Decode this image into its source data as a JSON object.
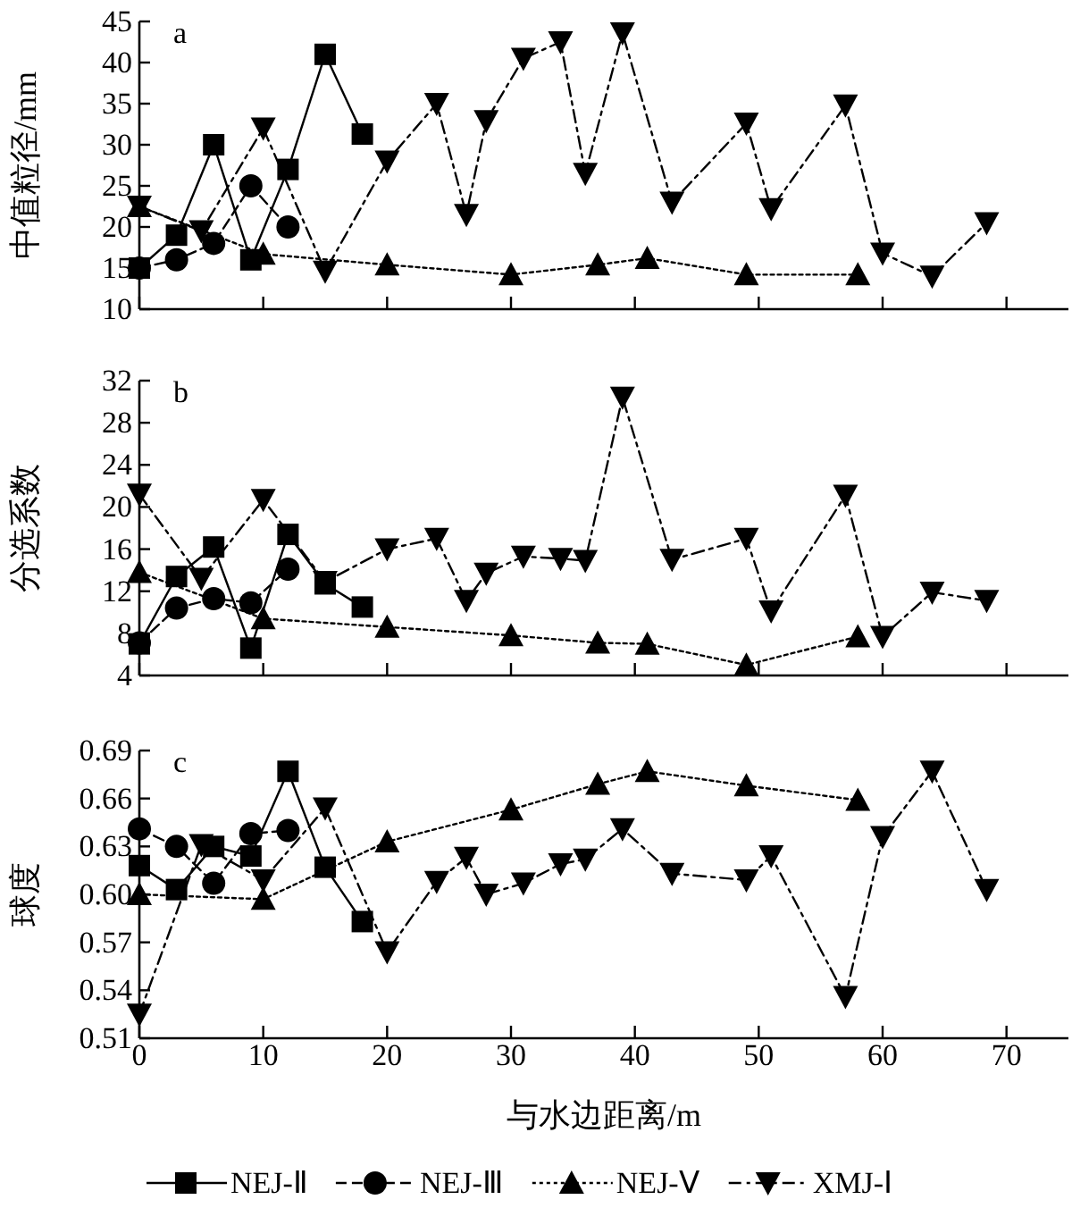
{
  "chart_data": [
    {
      "type": "line",
      "ylabel": "中值粒径/mm",
      "annotations": [
        "a"
      ],
      "xlim": [
        0,
        75
      ],
      "xticks": [
        0,
        10,
        20,
        30,
        40,
        50,
        60,
        70
      ],
      "ylim": [
        10,
        45
      ],
      "yticks": [
        10,
        15,
        20,
        25,
        30,
        35,
        40,
        45
      ],
      "tick_labels": "y",
      "series": [
        {
          "color": "#000000",
          "marker": "square",
          "line_style": "solid",
          "x": [
            0,
            3,
            6,
            9,
            12,
            15,
            18
          ],
          "values": [
            15,
            19,
            30,
            16,
            27,
            41,
            31.3
          ]
        },
        {
          "color": "#000000",
          "marker": "circle",
          "line_style": "dashed",
          "x": [
            0,
            3,
            6,
            9,
            12
          ],
          "values": [
            15,
            16,
            18,
            25,
            20
          ]
        },
        {
          "color": "#000000",
          "marker": "triangle",
          "line_style": "dotted",
          "x": [
            0,
            10,
            20,
            30,
            37,
            41,
            49,
            58
          ],
          "values": [
            22.5,
            16.7,
            15.4,
            14.2,
            15.4,
            16.2,
            14.2,
            14.2
          ]
        },
        {
          "color": "#000000",
          "marker": "triangle_down",
          "line_style": "dashdot",
          "x": [
            0,
            5,
            10,
            15,
            20,
            24,
            26.4,
            28,
            31,
            34,
            36,
            39,
            43,
            49,
            51,
            57,
            60,
            64,
            68.4
          ],
          "values": [
            22.5,
            19.5,
            32,
            14.6,
            28,
            35,
            21.5,
            32.9,
            40.5,
            42.5,
            26.5,
            43.6,
            23,
            32.6,
            22.2,
            34.8,
            16.8,
            14,
            20.5
          ]
        }
      ]
    },
    {
      "type": "line",
      "ylabel": "分选系数",
      "annotations": [
        "b"
      ],
      "xlim": [
        0,
        75
      ],
      "xticks": [
        0,
        10,
        20,
        30,
        40,
        50,
        60,
        70
      ],
      "ylim": [
        4,
        32
      ],
      "yticks": [
        4,
        8,
        12,
        16,
        20,
        24,
        28,
        32
      ],
      "tick_labels": "y",
      "series": [
        {
          "color": "#000000",
          "marker": "square",
          "line_style": "solid",
          "x": [
            0,
            3,
            6,
            9,
            12,
            15,
            18
          ],
          "values": [
            7,
            13.4,
            16.2,
            6.6,
            17.4,
            12.7,
            10.5
          ]
        },
        {
          "color": "#000000",
          "marker": "circle",
          "line_style": "dashed",
          "x": [
            0,
            3,
            6,
            9,
            12
          ],
          "values": [
            7.1,
            10.4,
            11.3,
            10.9,
            14.1
          ]
        },
        {
          "color": "#000000",
          "marker": "triangle",
          "line_style": "dotted",
          "x": [
            0,
            10,
            20,
            30,
            37,
            41,
            49,
            58
          ],
          "values": [
            13.8,
            9.4,
            8.6,
            7.8,
            7.1,
            7,
            5,
            7.7
          ]
        },
        {
          "color": "#000000",
          "marker": "triangle_down",
          "line_style": "dashdot",
          "x": [
            0,
            5,
            10,
            15,
            20,
            24,
            26.4,
            28,
            31,
            34,
            36,
            39,
            43,
            49,
            51,
            57,
            60,
            64,
            68.4
          ],
          "values": [
            21.2,
            13.2,
            20.7,
            12.9,
            16,
            17,
            11.1,
            13.7,
            15.3,
            15.1,
            14.9,
            30.4,
            15,
            17,
            10.1,
            21.1,
            7.7,
            11.9,
            11.1
          ]
        }
      ]
    },
    {
      "type": "line",
      "ylabel": "球度",
      "xlabel": "与水边距离/m",
      "annotations": [
        "c"
      ],
      "xlim": [
        0,
        75
      ],
      "xticks": [
        0,
        10,
        20,
        30,
        40,
        50,
        60,
        70
      ],
      "ylim": [
        0.51,
        0.69
      ],
      "yticks": [
        {
          "value": 0.51,
          "label": "0.51"
        },
        {
          "value": 0.54,
          "label": "0.54"
        },
        {
          "value": 0.57,
          "label": "0.57"
        },
        {
          "value": 0.6,
          "label": "0.60"
        },
        {
          "value": 0.63,
          "label": "0.63"
        },
        {
          "value": 0.66,
          "label": "0.66"
        },
        {
          "value": 0.69,
          "label": "0.69"
        }
      ],
      "legend": "bottom",
      "series": [
        {
          "name": "NEJ-Ⅱ",
          "color": "#000000",
          "marker": "square",
          "line_style": "solid",
          "x": [
            0,
            3,
            6,
            9,
            12,
            15,
            18
          ],
          "values": [
            0.618,
            0.603,
            0.63,
            0.624,
            0.677,
            0.617,
            0.583
          ]
        },
        {
          "name": "NEJ-Ⅲ",
          "color": "#000000",
          "marker": "circle",
          "line_style": "dashed",
          "x": [
            0,
            3,
            6,
            9,
            12
          ],
          "values": [
            0.641,
            0.63,
            0.607,
            0.638,
            0.64
          ]
        },
        {
          "name": "NEJ-Ⅴ",
          "color": "#000000",
          "marker": "triangle",
          "line_style": "dotted",
          "x": [
            0,
            10,
            20,
            30,
            37,
            41,
            49,
            58
          ],
          "values": [
            0.6,
            0.597,
            0.633,
            0.653,
            0.669,
            0.677,
            0.668,
            0.659
          ]
        },
        {
          "name": "XMJ-Ⅰ",
          "color": "#000000",
          "marker": "triangle_down",
          "line_style": "dashdot",
          "x": [
            0,
            5,
            10,
            15,
            20,
            24,
            26.4,
            28,
            31,
            34,
            36,
            39,
            43,
            49,
            51,
            57,
            60,
            64,
            68.4
          ],
          "values": [
            0.525,
            0.631,
            0.609,
            0.654,
            0.564,
            0.608,
            0.623,
            0.6,
            0.607,
            0.619,
            0.622,
            0.641,
            0.613,
            0.609,
            0.624,
            0.536,
            0.636,
            0.677,
            0.603
          ]
        }
      ]
    }
  ]
}
